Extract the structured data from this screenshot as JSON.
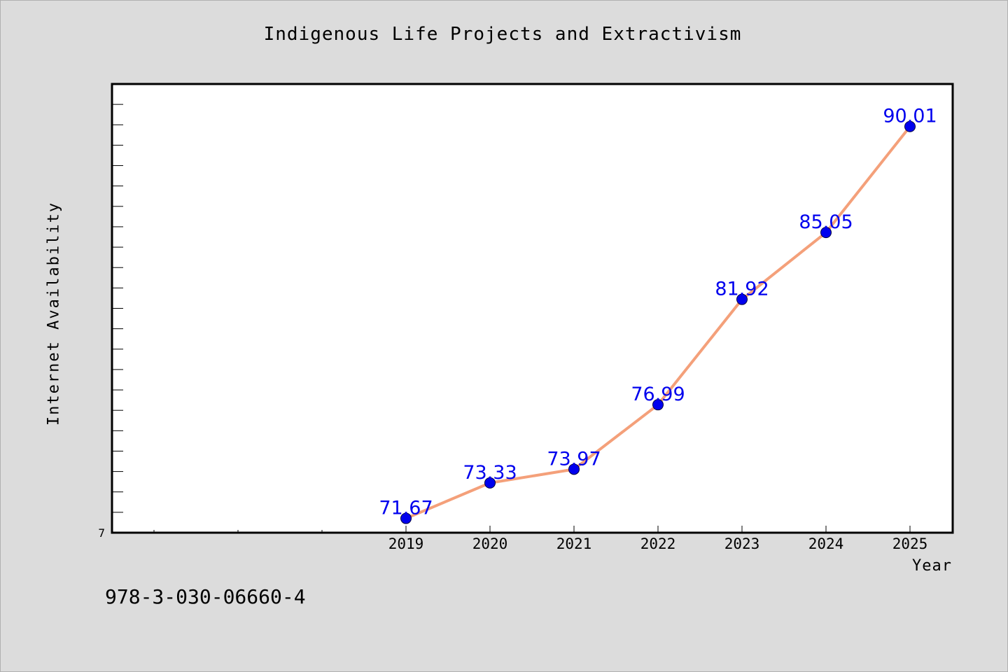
{
  "chart_data": {
    "type": "line",
    "title": "Indigenous Life Projects and Extractivism",
    "xlabel": "Year",
    "ylabel": "Internet Availability",
    "x": [
      "2019",
      "2020",
      "2021",
      "2022",
      "2023",
      "2024",
      "2025"
    ],
    "series": [
      {
        "values": [
          71.67,
          73.33,
          73.97,
          76.99,
          81.92,
          85.05,
          90.01
        ],
        "value_labels": [
          "71.67",
          "73.33",
          "73.97",
          "76.99",
          "81.92",
          "85.05",
          "90.01"
        ],
        "line_color": "#f4a07a",
        "marker_color": "#0000ee"
      }
    ],
    "ylim": [
      71,
      92
    ],
    "y_tick_label": "7",
    "grid": false,
    "legend": "none",
    "label_color": "#0000ee"
  },
  "footnote": "978-3-030-06660-4",
  "colors": {
    "background": "#dcdcdc",
    "plot_background": "#ffffff",
    "axis": "#000000"
  }
}
